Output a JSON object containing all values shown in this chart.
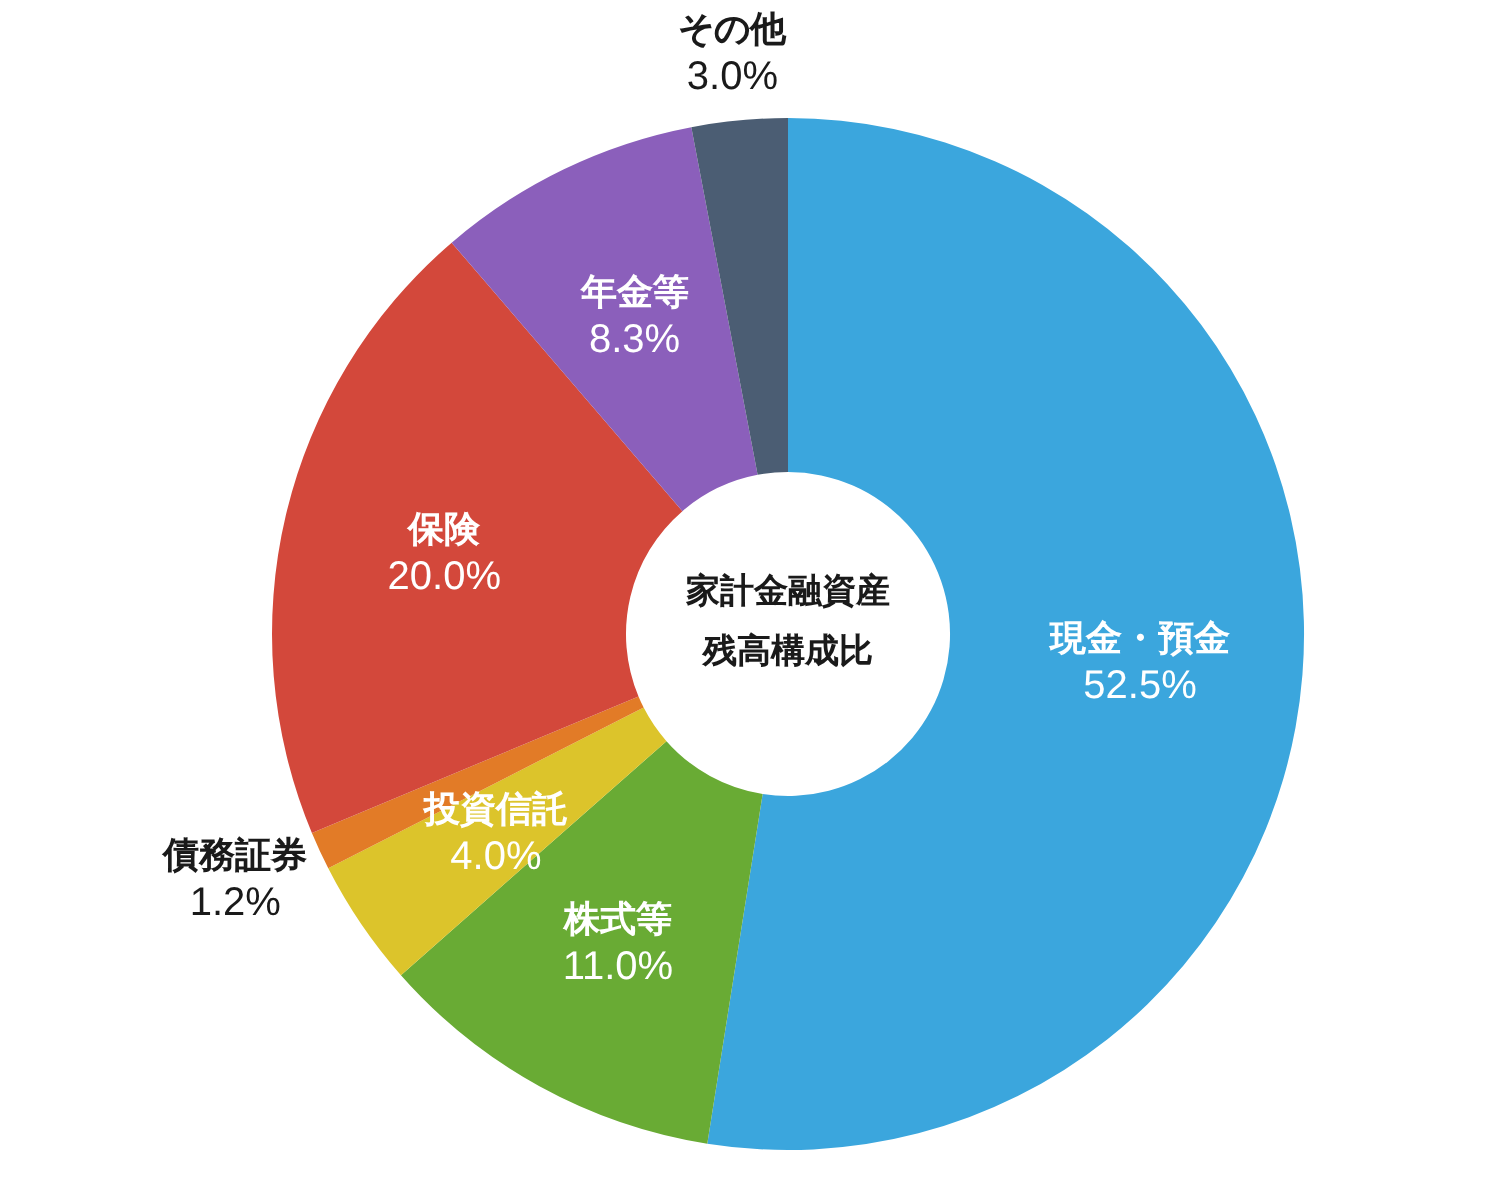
{
  "chart_data": {
    "type": "donut",
    "title": "家計金融資産残高構成比",
    "categories": [
      "現金・預金",
      "株式等",
      "投資信託",
      "債務証券",
      "保険",
      "年金等",
      "その他"
    ],
    "values": [
      52.5,
      11.0,
      4.0,
      1.2,
      20.0,
      8.3,
      3.0
    ],
    "value_labels": [
      "52.5%",
      "11.0%",
      "4.0%",
      "1.2%",
      "20.0%",
      "8.3%",
      "3.0%"
    ],
    "colors": [
      "#3ba6dd",
      "#69ab34",
      "#dcc42b",
      "#e27b27",
      "#d3483b",
      "#8b5fbb",
      "#4b5d73"
    ]
  }
}
